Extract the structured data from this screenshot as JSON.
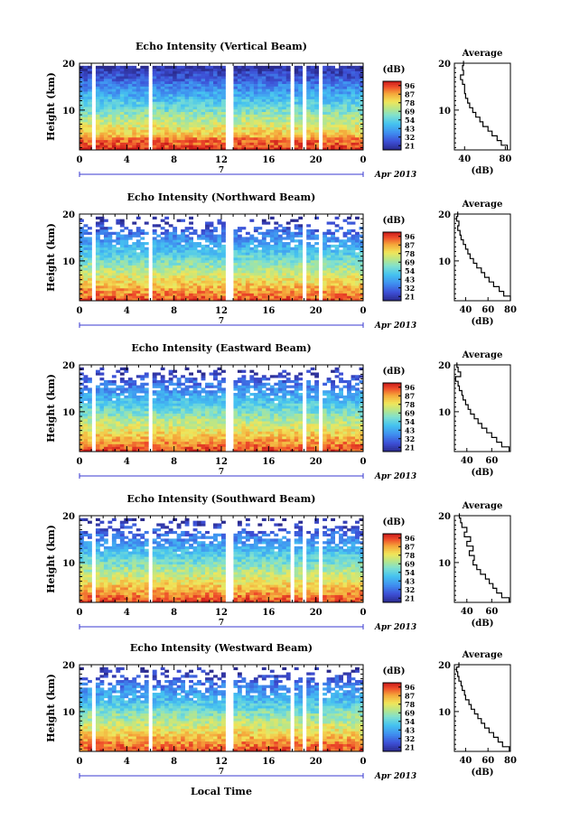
{
  "figure": {
    "xlabel": "Local Time",
    "date_label": "Apr 2013",
    "day_label": "7",
    "colorbar_unit": "(dB)",
    "colorbar_ticks": [
      "96",
      "87",
      "78",
      "69",
      "54",
      "43",
      "32",
      "21"
    ]
  },
  "chart_data": [
    {
      "type": "heatmap",
      "title": "Echo Intensity (Vertical Beam)",
      "ylabel": "Height (km)",
      "x_ticks": [
        "0",
        "4",
        "8",
        "12",
        "16",
        "20",
        "0"
      ],
      "y_ticks": [
        "20",
        "10"
      ],
      "xlim": [
        0,
        24
      ],
      "ylim": [
        1.5,
        20
      ],
      "data_gaps_hours": [
        [
          0.9,
          1.3
        ],
        [
          5.8,
          6.1
        ],
        [
          12.4,
          13.2
        ],
        [
          17.8,
          18.1
        ],
        [
          19.0,
          19.3
        ],
        [
          20.3,
          20.6
        ]
      ],
      "colorbar": {
        "label": "(dB)",
        "ticks": [
          "96",
          "87",
          "78",
          "69",
          "54",
          "43",
          "32",
          "21"
        ]
      },
      "profile": {
        "title": "Average",
        "xlabel": "(dB)",
        "x_ticks": [
          "40",
          "80"
        ],
        "y_ticks": [
          "20",
          "10"
        ],
        "xlim": [
          30,
          85
        ],
        "ylim": [
          1.5,
          20
        ],
        "height": [
          2,
          3,
          4,
          5,
          6,
          7,
          8,
          9,
          10,
          11,
          12,
          13,
          14,
          15,
          16,
          17,
          18,
          19,
          20
        ],
        "intensity": [
          82,
          76,
          72,
          67,
          63,
          58,
          55,
          51,
          48,
          45,
          43,
          41,
          40,
          40,
          38,
          36,
          39,
          38,
          39
        ]
      }
    },
    {
      "type": "heatmap",
      "title": "Echo Intensity (Northward Beam)",
      "ylabel": "Height (km)",
      "x_ticks": [
        "0",
        "4",
        "8",
        "12",
        "16",
        "20",
        "0"
      ],
      "y_ticks": [
        "20",
        "10"
      ],
      "xlim": [
        0,
        24
      ],
      "ylim": [
        1.5,
        20
      ],
      "data_gaps_hours": [
        [
          0.9,
          1.3
        ],
        [
          5.8,
          6.1
        ],
        [
          12.4,
          13.2
        ],
        [
          19.0,
          19.3
        ],
        [
          20.3,
          20.6
        ]
      ],
      "colorbar": {
        "label": "(dB)",
        "ticks": [
          "96",
          "87",
          "78",
          "69",
          "54",
          "43",
          "32",
          "21"
        ]
      },
      "profile": {
        "title": "Average",
        "xlabel": "(dB)",
        "x_ticks": [
          "40",
          "60",
          "80"
        ],
        "y_ticks": [
          "20",
          "10"
        ],
        "xlim": [
          30,
          80
        ],
        "ylim": [
          1.5,
          20
        ],
        "height": [
          2,
          3,
          4,
          5,
          6,
          7,
          8,
          9,
          10,
          11,
          12,
          13,
          14,
          15,
          16,
          17,
          18,
          19,
          20
        ],
        "intensity": [
          80,
          74,
          70,
          65,
          61,
          57,
          54,
          50,
          47,
          44,
          42,
          40,
          38,
          36,
          35,
          33,
          34,
          32,
          33
        ]
      }
    },
    {
      "type": "heatmap",
      "title": "Echo Intensity (Eastward Beam)",
      "ylabel": "Height (km)",
      "x_ticks": [
        "0",
        "4",
        "8",
        "12",
        "16",
        "20",
        "0"
      ],
      "y_ticks": [
        "20",
        "10"
      ],
      "xlim": [
        0,
        24
      ],
      "ylim": [
        1.5,
        20
      ],
      "data_gaps_hours": [
        [
          0.9,
          1.3
        ],
        [
          5.8,
          6.1
        ],
        [
          12.4,
          13.2
        ],
        [
          19.0,
          19.3
        ],
        [
          20.3,
          20.6
        ]
      ],
      "colorbar": {
        "label": "(dB)",
        "ticks": [
          "96",
          "87",
          "78",
          "69",
          "54",
          "43",
          "32",
          "21"
        ]
      },
      "profile": {
        "title": "Average",
        "xlabel": "(dB)",
        "x_ticks": [
          "40",
          "60"
        ],
        "y_ticks": [
          "20",
          "10"
        ],
        "xlim": [
          30,
          75
        ],
        "ylim": [
          1.5,
          20
        ],
        "height": [
          2,
          3,
          4,
          5,
          6,
          7,
          8,
          9,
          10,
          11,
          12,
          13,
          14,
          15,
          16,
          17,
          18,
          19,
          20
        ],
        "intensity": [
          74,
          68,
          64,
          60,
          56,
          52,
          49,
          46,
          43,
          41,
          39,
          37,
          36,
          34,
          33,
          31,
          35,
          33,
          32
        ]
      }
    },
    {
      "type": "heatmap",
      "title": "Echo Intensity (Southward Beam)",
      "ylabel": "Height (km)",
      "x_ticks": [
        "0",
        "4",
        "8",
        "12",
        "16",
        "20",
        "0"
      ],
      "y_ticks": [
        "20",
        "10"
      ],
      "xlim": [
        0,
        24
      ],
      "ylim": [
        1.5,
        20
      ],
      "data_gaps_hours": [
        [
          0.9,
          1.3
        ],
        [
          5.8,
          6.1
        ],
        [
          12.4,
          13.2
        ],
        [
          17.8,
          18.1
        ],
        [
          19.0,
          19.3
        ],
        [
          20.3,
          20.6
        ]
      ],
      "colorbar": {
        "label": "(dB)",
        "ticks": [
          "96",
          "87",
          "78",
          "69",
          "54",
          "43",
          "32",
          "21"
        ]
      },
      "profile": {
        "title": "Average",
        "xlabel": "(dB)",
        "x_ticks": [
          "40",
          "60"
        ],
        "y_ticks": [
          "20",
          "10"
        ],
        "xlim": [
          30,
          75
        ],
        "ylim": [
          1.5,
          20
        ],
        "height": [
          2,
          3,
          4,
          5,
          6,
          7,
          8,
          9,
          10,
          11,
          12,
          13,
          14,
          15,
          16,
          17,
          18,
          19,
          20
        ],
        "intensity": [
          74,
          68,
          64,
          61,
          58,
          55,
          51,
          48,
          45,
          46,
          42,
          45,
          40,
          43,
          38,
          40,
          36,
          35,
          34
        ]
      }
    },
    {
      "type": "heatmap",
      "title": "Echo Intensity (Westward Beam)",
      "ylabel": "Height (km)",
      "x_ticks": [
        "0",
        "4",
        "8",
        "12",
        "16",
        "20",
        "0"
      ],
      "y_ticks": [
        "20",
        "10"
      ],
      "xlim": [
        0,
        24
      ],
      "ylim": [
        1.5,
        20
      ],
      "data_gaps_hours": [
        [
          0.9,
          1.3
        ],
        [
          5.8,
          6.1
        ],
        [
          12.4,
          13.2
        ],
        [
          17.8,
          18.1
        ],
        [
          19.0,
          19.3
        ],
        [
          20.3,
          20.6
        ]
      ],
      "colorbar": {
        "label": "(dB)",
        "ticks": [
          "96",
          "87",
          "78",
          "69",
          "54",
          "43",
          "32",
          "21"
        ]
      },
      "profile": {
        "title": "Average",
        "xlabel": "(dB)",
        "x_ticks": [
          "40",
          "60",
          "80"
        ],
        "y_ticks": [
          "20",
          "10"
        ],
        "xlim": [
          30,
          80
        ],
        "ylim": [
          1.5,
          20
        ],
        "height": [
          2,
          3,
          4,
          5,
          6,
          7,
          8,
          9,
          10,
          11,
          12,
          13,
          14,
          15,
          16,
          17,
          18,
          19,
          20
        ],
        "intensity": [
          79,
          73,
          69,
          65,
          61,
          57,
          54,
          51,
          48,
          45,
          43,
          40,
          39,
          37,
          36,
          34,
          33,
          32,
          34
        ]
      }
    }
  ]
}
